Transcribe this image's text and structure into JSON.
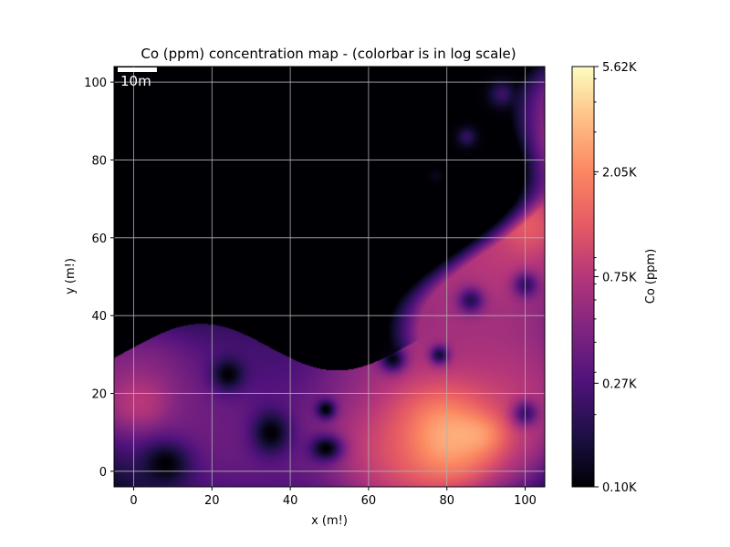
{
  "chart_data": {
    "type": "heatmap",
    "title": "Co (ppm) concentration map - (colorbar is in log scale)",
    "xlabel": "x (m!)",
    "ylabel": "y (m!)",
    "xlim": [
      -5,
      105
    ],
    "ylim": [
      -4,
      104
    ],
    "x_ticks": [
      0,
      20,
      40,
      60,
      80,
      100
    ],
    "y_ticks": [
      0,
      20,
      40,
      60,
      80,
      100
    ],
    "grid": true,
    "colormap": "magma",
    "scale_bar": {
      "label": "10m",
      "length_m": 10
    },
    "colorbar": {
      "label": "Co (ppm)",
      "scale": "log",
      "range_ppm": [
        100,
        5620
      ],
      "ticks": [
        {
          "value": 100,
          "label": "0.10K"
        },
        {
          "value": 270,
          "label": "0.27K"
        },
        {
          "value": 750,
          "label": "0.75K"
        },
        {
          "value": 2050,
          "label": "2.05K"
        },
        {
          "value": 5620,
          "label": "5.62K"
        }
      ]
    },
    "background_ppm": 100,
    "hotspots": [
      {
        "x": 2,
        "y": 22,
        "rx": 14,
        "ry": 10,
        "ppm": 700
      },
      {
        "x": 2,
        "y": 18,
        "rx": 6,
        "ry": 5,
        "ppm": 1400
      },
      {
        "x": 20,
        "y": 14,
        "rx": 18,
        "ry": 14,
        "ppm": 450
      },
      {
        "x": 40,
        "y": 6,
        "rx": 20,
        "ry": 10,
        "ppm": 380
      },
      {
        "x": 30,
        "y": 26,
        "rx": 16,
        "ry": 10,
        "ppm": 250
      },
      {
        "x": 55,
        "y": 18,
        "rx": 14,
        "ry": 10,
        "ppm": 420
      },
      {
        "x": 62,
        "y": 8,
        "rx": 12,
        "ry": 10,
        "ppm": 1200
      },
      {
        "x": 76,
        "y": 12,
        "rx": 18,
        "ry": 14,
        "ppm": 3500
      },
      {
        "x": 80,
        "y": 10,
        "rx": 8,
        "ry": 7,
        "ppm": 5500
      },
      {
        "x": 88,
        "y": 10,
        "rx": 5,
        "ry": 4,
        "ppm": 4800
      },
      {
        "x": 95,
        "y": 20,
        "rx": 12,
        "ry": 14,
        "ppm": 900
      },
      {
        "x": 70,
        "y": 30,
        "rx": 18,
        "ry": 12,
        "ppm": 650
      },
      {
        "x": 88,
        "y": 38,
        "rx": 16,
        "ry": 14,
        "ppm": 700
      },
      {
        "x": 82,
        "y": 52,
        "rx": 16,
        "ry": 14,
        "ppm": 800
      },
      {
        "x": 95,
        "y": 55,
        "rx": 12,
        "ry": 10,
        "ppm": 1100
      },
      {
        "x": 100,
        "y": 63,
        "rx": 6,
        "ry": 6,
        "ppm": 2200
      },
      {
        "x": 78,
        "y": 65,
        "rx": 5,
        "ry": 5,
        "ppm": 2800
      },
      {
        "x": 72,
        "y": 62,
        "rx": 10,
        "ry": 8,
        "ppm": 600
      },
      {
        "x": 88,
        "y": 70,
        "rx": 14,
        "ry": 10,
        "ppm": 850
      },
      {
        "x": 95,
        "y": 80,
        "rx": 10,
        "ry": 8,
        "ppm": 1500
      },
      {
        "x": 88,
        "y": 88,
        "rx": 14,
        "ry": 14,
        "ppm": 600
      },
      {
        "x": 90,
        "y": 98,
        "rx": 16,
        "ry": 8,
        "ppm": 500
      },
      {
        "x": 80,
        "y": 78,
        "rx": 10,
        "ry": 8,
        "ppm": 650
      },
      {
        "x": 72,
        "y": 68,
        "rx": 6,
        "ry": 6,
        "ppm": 400
      }
    ],
    "low_spots": [
      {
        "x": 8,
        "y": 2,
        "rx": 8,
        "ry": 7,
        "ppm": 100
      },
      {
        "x": 24,
        "y": 25,
        "rx": 5,
        "ry": 5,
        "ppm": 100
      },
      {
        "x": 35,
        "y": 10,
        "rx": 6,
        "ry": 7,
        "ppm": 100
      },
      {
        "x": 49,
        "y": 6,
        "rx": 5,
        "ry": 4,
        "ppm": 100
      },
      {
        "x": 49,
        "y": 16,
        "rx": 3,
        "ry": 3,
        "ppm": 100
      },
      {
        "x": 66,
        "y": 29,
        "rx": 4,
        "ry": 4,
        "ppm": 110
      },
      {
        "x": 78,
        "y": 30,
        "rx": 3,
        "ry": 3,
        "ppm": 150
      },
      {
        "x": 86,
        "y": 44,
        "rx": 4,
        "ry": 4,
        "ppm": 180
      },
      {
        "x": 100,
        "y": 48,
        "rx": 4,
        "ry": 4,
        "ppm": 200
      },
      {
        "x": 100,
        "y": 15,
        "rx": 4,
        "ry": 4,
        "ppm": 220
      },
      {
        "x": 85,
        "y": 86,
        "rx": 3,
        "ry": 3,
        "ppm": 200
      },
      {
        "x": 94,
        "y": 97,
        "rx": 4,
        "ry": 4,
        "ppm": 220
      },
      {
        "x": 77,
        "y": 76,
        "rx": 2,
        "ry": 2,
        "ppm": 120
      }
    ],
    "dark_zone_ppm": 100
  }
}
